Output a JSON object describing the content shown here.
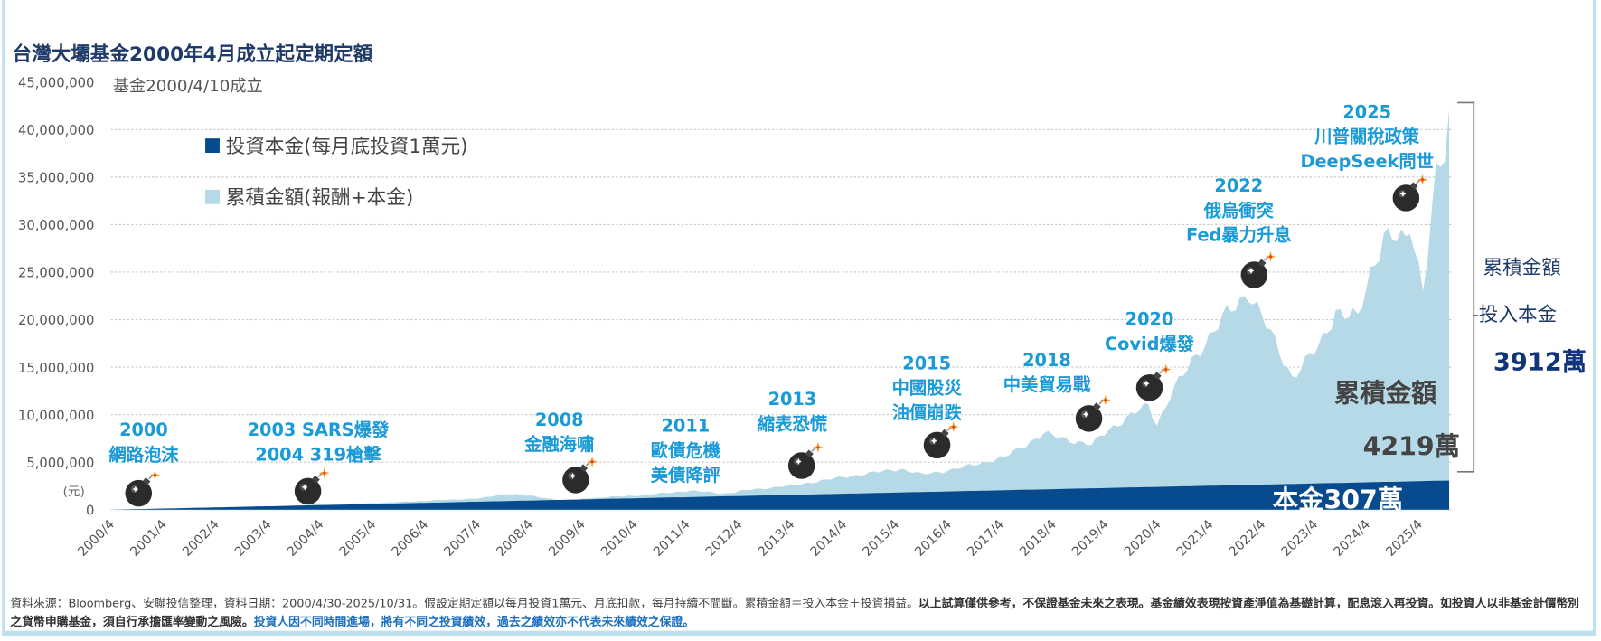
{
  "colors": {
    "principal": "#074a8d",
    "cumulative": "#b5d9e6",
    "annotation": "#1a9ad6",
    "title": "#1f3a68"
  },
  "title": "台灣大壩基金2000年4月成立起定期定額",
  "subtitle": "基金2000/4/10成立",
  "unit_label": "(元)",
  "legend": [
    {
      "label": "投資本金(每月底投資1萬元)",
      "color": "#074a8d"
    },
    {
      "label": "累積金額(報酬+本金)",
      "color": "#b5d9e6"
    }
  ],
  "annotations": [
    {
      "year": "2000",
      "lines": [
        "2000",
        "網路泡沫"
      ],
      "icon": "bomb-icon"
    },
    {
      "year": "2003",
      "lines": [
        "2003 SARS爆發",
        "2004 319槍擊"
      ],
      "icon": "bomb-icon"
    },
    {
      "year": "2008",
      "lines": [
        "2008",
        "金融海嘯"
      ],
      "icon": "bomb-icon"
    },
    {
      "year": "2011",
      "lines": [
        "2011",
        "歐債危機",
        "美債降評"
      ],
      "icon": ""
    },
    {
      "year": "2013",
      "lines": [
        "2013",
        "縮表恐慌"
      ],
      "icon": "bomb-icon"
    },
    {
      "year": "2015",
      "lines": [
        "2015",
        "中國股災",
        "油價崩跌"
      ],
      "icon": "bomb-icon"
    },
    {
      "year": "2018",
      "lines": [
        "2018",
        "中美貿易戰"
      ],
      "icon": "bomb-icon"
    },
    {
      "year": "2020",
      "lines": [
        "2020",
        "Covid爆發"
      ],
      "icon": "bomb-icon"
    },
    {
      "year": "2022",
      "lines": [
        "2022",
        "俄烏衝突",
        "Fed暴力升息"
      ],
      "icon": "bomb-icon"
    },
    {
      "year": "2025",
      "lines": [
        "2025",
        "川普關稅政策",
        "DeepSeek問世"
      ],
      "icon": "bomb-icon"
    }
  ],
  "summary": {
    "cumulative_label": "累積金額",
    "cumulative_value": "4219萬",
    "principal_label": "本金307萬",
    "diff_line1": "累積金額",
    "diff_line2": "-投入本金",
    "diff_value": "3912萬"
  },
  "footer": {
    "normal": "資料來源：Bloomberg、安聯投信整理，資料日期：2000/4/30-2025/10/31。假設定期定額以每月投資1萬元、月底扣款，每月持續不間斷。累積金額＝投入本金＋投資損益。",
    "bold": "以上試算僅供參考，不保證基金未來之表現。基金績效表現按資產淨值為基礎計算，配息滾入再投資。如投資人以非基金計價幣別之貨幣申購基金，須自行承擔匯率變動之風險。",
    "blue": "投資人因不同時間進場，將有不同之投資績效，過去之績效亦不代表未來績效之保證。"
  },
  "chart_data": {
    "type": "area",
    "title": "台灣大壩基金2000年4月成立起定期定額",
    "ylabel": "(元)",
    "ylim": [
      0,
      45000000
    ],
    "yticks": [
      0,
      5000000,
      10000000,
      15000000,
      20000000,
      25000000,
      30000000,
      35000000,
      40000000,
      45000000
    ],
    "ytick_labels": [
      "0",
      "5,000,000",
      "10,000,000",
      "15,000,000",
      "20,000,000",
      "25,000,000",
      "30,000,000",
      "35,000,000",
      "40,000,000",
      "45,000,000"
    ],
    "xlim": [
      "2000/4",
      "2025/10"
    ],
    "xtick_labels": [
      "2000/4",
      "2001/4",
      "2002/4",
      "2003/4",
      "2004/4",
      "2005/4",
      "2006/4",
      "2007/4",
      "2008/4",
      "2009/4",
      "2010/4",
      "2011/4",
      "2012/4",
      "2013/4",
      "2014/4",
      "2015/4",
      "2016/4",
      "2017/4",
      "2018/4",
      "2019/4",
      "2020/4",
      "2021/4",
      "2022/4",
      "2023/4",
      "2024/4",
      "2025/4"
    ],
    "grid": true,
    "legend_position": "top-left",
    "series": [
      {
        "name": "投資本金(每月底投資1萬元)",
        "points": [
          [
            "2000/4",
            10000
          ],
          [
            "2025/10",
            3070000
          ]
        ]
      },
      {
        "name": "累積金額(報酬+本金)",
        "points": [
          [
            "2000/4",
            10000
          ],
          [
            "2001/4",
            100000
          ],
          [
            "2002/4",
            250000
          ],
          [
            "2003/4",
            350000
          ],
          [
            "2004/4",
            550000
          ],
          [
            "2005/4",
            700000
          ],
          [
            "2006/4",
            950000
          ],
          [
            "2007/4",
            1200000
          ],
          [
            "2007/10",
            1700000
          ],
          [
            "2008/4",
            1400000
          ],
          [
            "2008/12",
            900000
          ],
          [
            "2009/4",
            1200000
          ],
          [
            "2010/4",
            1500000
          ],
          [
            "2011/4",
            2000000
          ],
          [
            "2011/12",
            1700000
          ],
          [
            "2012/4",
            2000000
          ],
          [
            "2013/4",
            2600000
          ],
          [
            "2014/4",
            3500000
          ],
          [
            "2015/4",
            4300000
          ],
          [
            "2015/9",
            3700000
          ],
          [
            "2016/4",
            4200000
          ],
          [
            "2017/4",
            5500000
          ],
          [
            "2018/1",
            8000000
          ],
          [
            "2018/12",
            6800000
          ],
          [
            "2019/4",
            8500000
          ],
          [
            "2020/1",
            11000000
          ],
          [
            "2020/3",
            9000000
          ],
          [
            "2020/6",
            12000000
          ],
          [
            "2021/1",
            17000000
          ],
          [
            "2021/6",
            20000000
          ],
          [
            "2021/12",
            23000000
          ],
          [
            "2022/10",
            14000000
          ],
          [
            "2023/4",
            17000000
          ],
          [
            "2023/8",
            21000000
          ],
          [
            "2024/1",
            20000000
          ],
          [
            "2024/4",
            25000000
          ],
          [
            "2024/7",
            29000000
          ],
          [
            "2024/12",
            28000000
          ],
          [
            "2025/1",
            30000000
          ],
          [
            "2025/4",
            23500000
          ],
          [
            "2025/7",
            35000000
          ],
          [
            "2025/9",
            37000000
          ],
          [
            "2025/10",
            42190000
          ]
        ]
      }
    ]
  }
}
